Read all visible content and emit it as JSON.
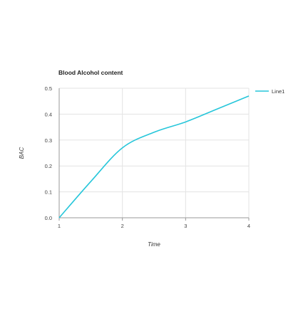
{
  "chart_data": {
    "type": "line",
    "title": "Blood Alcohol content",
    "xlabel": "Time",
    "ylabel": "BAC",
    "x": [
      1,
      1.5,
      2,
      2.5,
      3,
      3.5,
      4
    ],
    "series": [
      {
        "name": "Line1",
        "color": "#26C6DA",
        "values": [
          0.0,
          0.14,
          0.27,
          0.33,
          0.37,
          0.42,
          0.47
        ]
      }
    ],
    "xlim": [
      1,
      4
    ],
    "ylim": [
      0,
      0.5
    ],
    "x_ticks": [
      1,
      2,
      3,
      4
    ],
    "y_ticks": [
      0.0,
      0.1,
      0.2,
      0.3,
      0.4,
      0.5
    ],
    "x_tick_labels": [
      "1",
      "2",
      "3",
      "4"
    ],
    "y_tick_labels": [
      "0.0",
      "0.1",
      "0.2",
      "0.3",
      "0.4",
      "0.5"
    ],
    "grid": true,
    "legend": "right"
  }
}
